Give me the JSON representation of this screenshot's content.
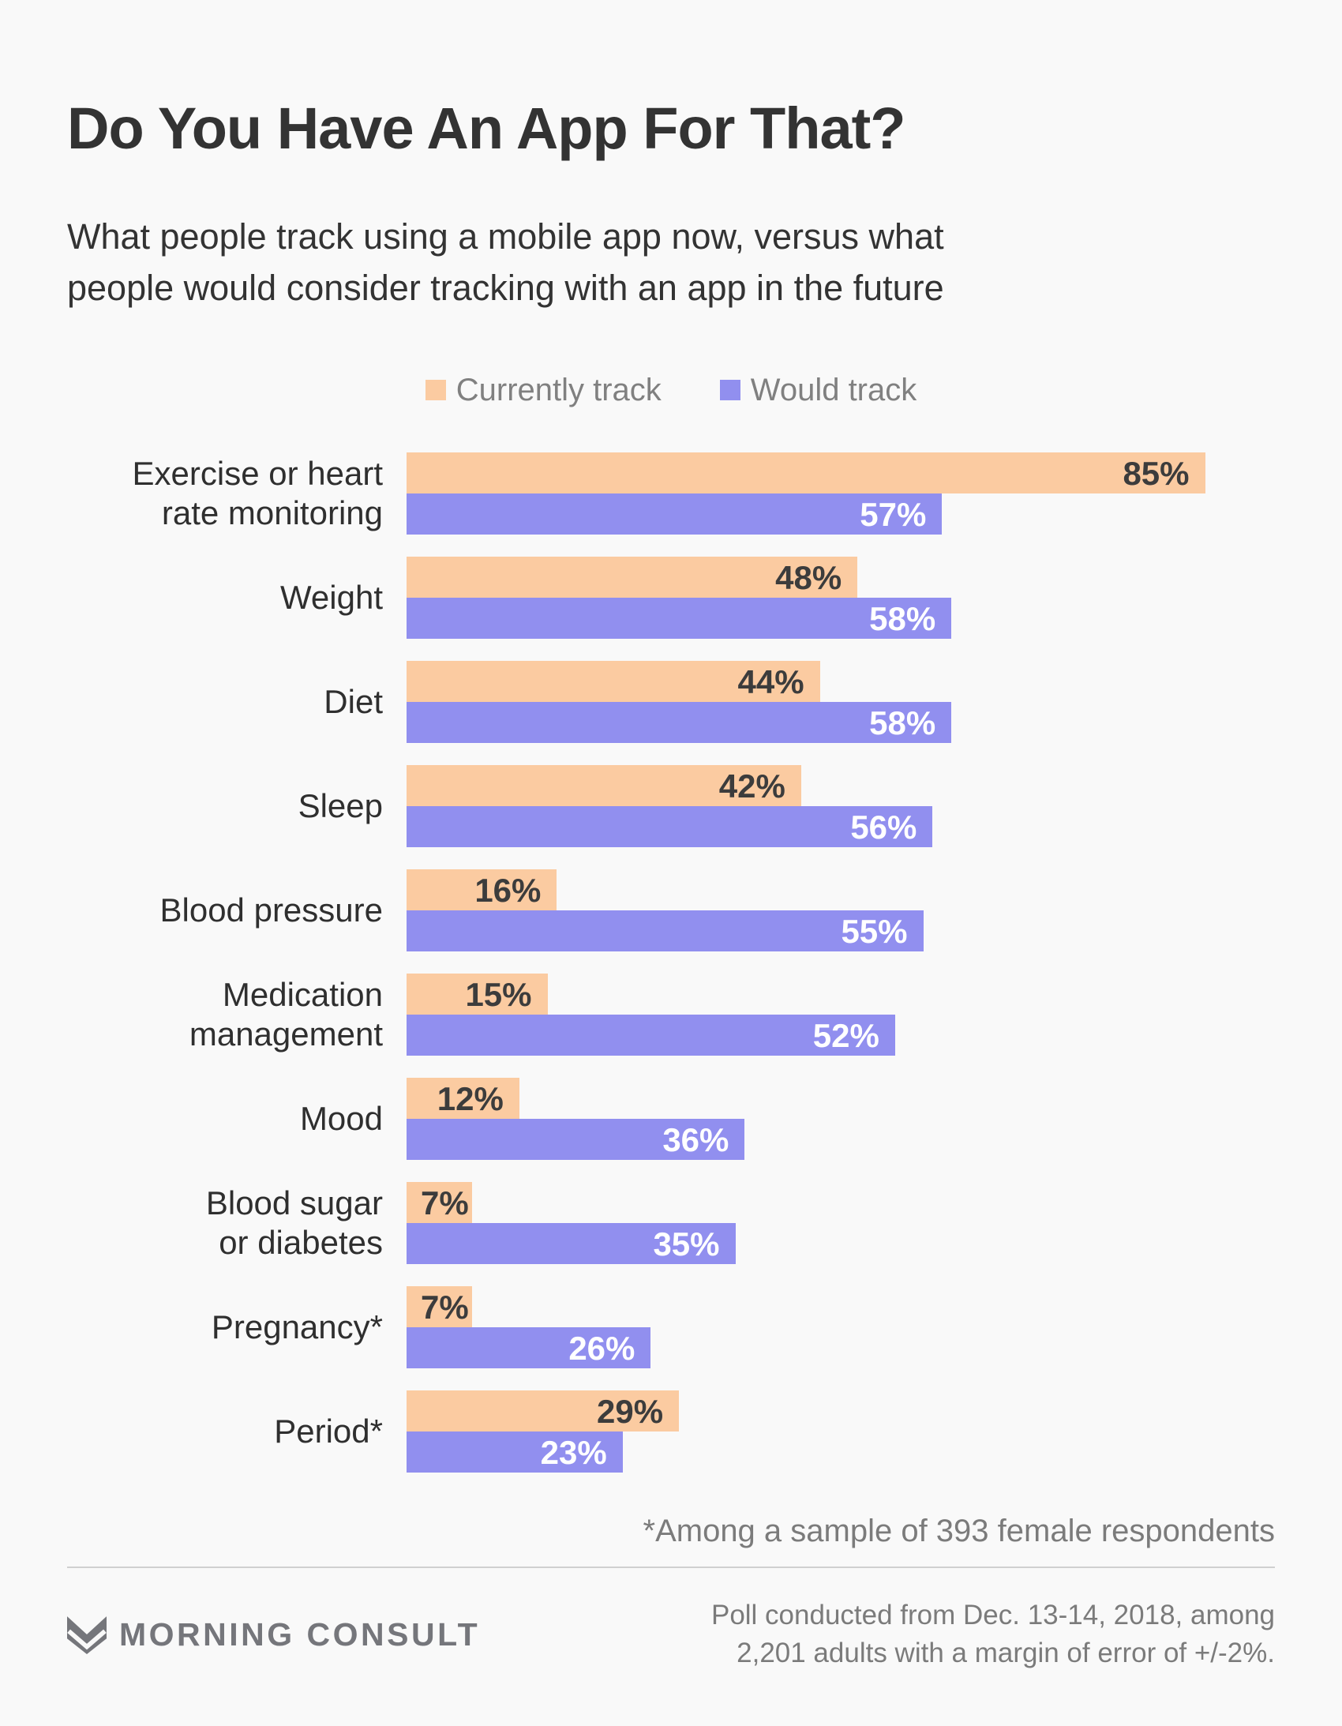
{
  "page": {
    "title": "Do You Have An App For That?",
    "subtitle": "What people track using a mobile app now, versus what people would consider tracking with an app in the future",
    "footnote": "*Among a sample of 393 female respondents",
    "source_line1": "Poll conducted from Dec. 13-14, 2018, among",
    "source_line2": "2,201 adults with a margin of error of +/-2%.",
    "brand_name": "MORNING CONSULT",
    "brand_icon": "m-chevron-logo-icon"
  },
  "colors": {
    "background": "#F9F9F9",
    "dark_text": "#333333",
    "currently_track": "#FBCBA1",
    "would_track": "#918FEF",
    "value_label_on_orange": "#3C3C3C",
    "value_label_on_purple": "#FFFFFF",
    "legend_text": "#808080",
    "muted_text": "#7B7B7B",
    "divider": "#D0D0D0",
    "brand_gray": "#75767B"
  },
  "legend": [
    {
      "label": "Currently track",
      "color_key": "currently_track"
    },
    {
      "label": "Would track",
      "color_key": "would_track"
    }
  ],
  "chart_data": {
    "type": "bar",
    "orientation": "horizontal",
    "title": "Do You Have An App For That?",
    "categories": [
      "Exercise or heart rate monitoring",
      "Weight",
      "Diet",
      "Sleep",
      "Blood pressure",
      "Medication management",
      "Mood",
      "Blood sugar or diabetes",
      "Pregnancy*",
      "Period*"
    ],
    "category_label_lines": [
      [
        "Exercise or heart",
        "rate monitoring"
      ],
      [
        "Weight"
      ],
      [
        "Diet"
      ],
      [
        "Sleep"
      ],
      [
        "Blood pressure"
      ],
      [
        "Medication",
        "management"
      ],
      [
        "Mood"
      ],
      [
        "Blood sugar",
        "or diabetes"
      ],
      [
        "Pregnancy*"
      ],
      [
        "Period*"
      ]
    ],
    "series": [
      {
        "name": "Currently track",
        "values": [
          85,
          48,
          44,
          42,
          16,
          15,
          12,
          7,
          7,
          29
        ]
      },
      {
        "name": "Would track",
        "values": [
          57,
          58,
          58,
          56,
          55,
          52,
          36,
          35,
          26,
          23
        ]
      }
    ],
    "value_suffix": "%",
    "xlim": [
      0,
      100
    ],
    "grid": false,
    "legend_position": "top-center",
    "value_labels": "inside-end"
  }
}
